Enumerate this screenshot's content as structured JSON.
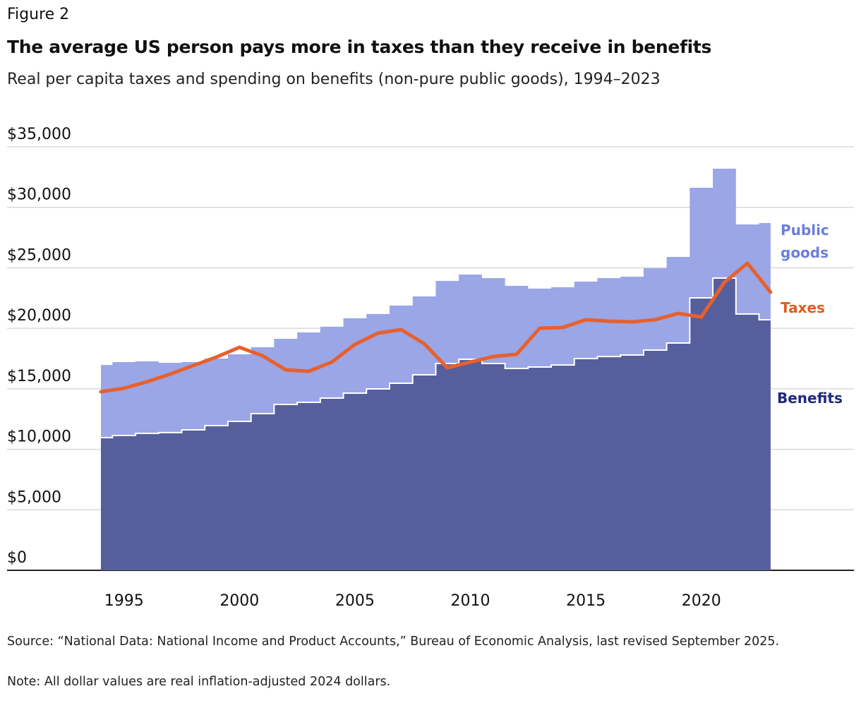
{
  "figure_label": "Figure 2",
  "chart_data": {
    "type": "area",
    "title": "The average US person pays more in taxes than they receive in benefits",
    "subtitle": "Real per capita taxes and spending on benefits (non-pure public goods), 1994–2023",
    "xlabel": "",
    "ylabel": "",
    "x": [
      1994,
      1995,
      1996,
      1997,
      1998,
      1999,
      2000,
      2001,
      2002,
      2003,
      2004,
      2005,
      2006,
      2007,
      2008,
      2009,
      2010,
      2011,
      2012,
      2013,
      2014,
      2015,
      2016,
      2017,
      2018,
      2019,
      2020,
      2021,
      2022,
      2023
    ],
    "xlim": [
      1994,
      2029
    ],
    "ylim": [
      0,
      35000
    ],
    "yticks": [
      0,
      5000,
      10000,
      15000,
      20000,
      25000,
      30000,
      35000
    ],
    "ytick_labels": [
      "$0",
      "$5,000",
      "$10,000",
      "$15,000",
      "$20,000",
      "$25,000",
      "$30,000",
      "$35,000"
    ],
    "xticks": [
      1995,
      2000,
      2005,
      2010,
      2015,
      2020
    ],
    "xtick_labels": [
      "1995",
      "2000",
      "2005",
      "2010",
      "2015",
      "2020"
    ],
    "grid": true,
    "series": [
      {
        "name": "Benefits",
        "style": "step-area",
        "color": "#565f9c",
        "label_color": "#1f2a7a",
        "values": [
          10970,
          11140,
          11320,
          11380,
          11610,
          11960,
          12310,
          12950,
          13710,
          13880,
          14230,
          14640,
          14990,
          15460,
          16160,
          17090,
          17440,
          17090,
          16680,
          16800,
          16970,
          17500,
          17670,
          17790,
          18200,
          18780,
          22520,
          24150,
          21180,
          20710
        ]
      },
      {
        "name": "Public goods",
        "style": "step-area-stacked-total",
        "color": "#9aa6e6",
        "label_color": "#6b7fdc",
        "values": [
          16970,
          17210,
          17270,
          17150,
          17210,
          17500,
          17850,
          18430,
          19130,
          19660,
          20130,
          20830,
          21180,
          21880,
          22630,
          23920,
          24440,
          24150,
          23510,
          23280,
          23390,
          23860,
          24150,
          24270,
          24970,
          25900,
          31620,
          33190,
          28580,
          28700
        ]
      },
      {
        "name": "Taxes",
        "style": "line",
        "color": "#e8602c",
        "label_color": "#e05a24",
        "values": [
          14760,
          15050,
          15580,
          16220,
          16920,
          17620,
          18430,
          17730,
          16570,
          16450,
          17210,
          18670,
          19600,
          19890,
          18730,
          16740,
          17210,
          17670,
          17850,
          20010,
          20070,
          20710,
          20590,
          20530,
          20710,
          21230,
          20940,
          23800,
          25380,
          22980
        ]
      }
    ],
    "legend": {
      "placement": "right-inline",
      "labels": [
        "Public goods",
        "Taxes",
        "Benefits"
      ]
    }
  },
  "labels": {
    "public_line1": "Public",
    "public_line2": "goods",
    "taxes": "Taxes",
    "benefits": "Benefits"
  },
  "source": "Source: “National Data: National Income and Product Accounts,” Bureau of Economic Analysis, last revised September 2025.",
  "note": "Note: All dollar values are real inflation-adjusted 2024 dollars."
}
